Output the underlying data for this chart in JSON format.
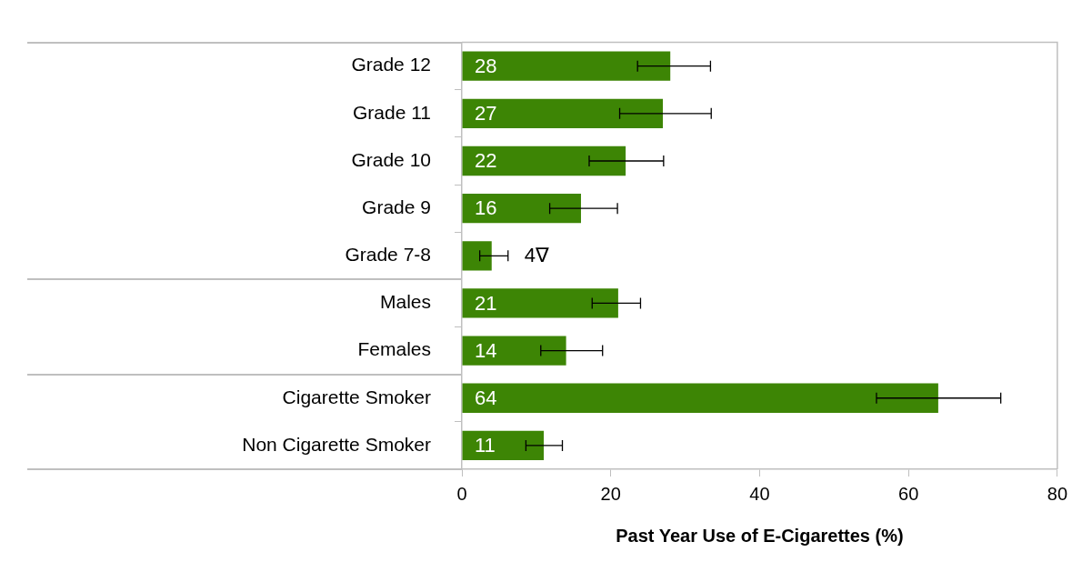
{
  "chart_data": {
    "type": "bar",
    "orientation": "horizontal",
    "xlabel": "Past Year Use of E-Cigarettes (%)",
    "categories": [
      "Grade 12",
      "Grade 11",
      "Grade 10",
      "Grade 9",
      "Grade 7-8",
      "Males",
      "Females",
      "Cigarette Smoker",
      "Non Cigarette Smoker"
    ],
    "values": [
      28,
      27,
      22,
      16,
      4,
      21,
      14,
      64,
      11
    ],
    "color": "#3d8505",
    "errors": [
      [
        23.6,
        33.4
      ],
      [
        21.2,
        33.5
      ],
      [
        17.1,
        27.1
      ],
      [
        11.8,
        20.9
      ],
      [
        2.4,
        6.2
      ],
      [
        17.5,
        24.0
      ],
      [
        10.6,
        18.9
      ],
      [
        55.7,
        72.4
      ],
      [
        8.6,
        13.5
      ]
    ],
    "value_labels": [
      "28",
      "27",
      "22",
      "16",
      "4∇",
      "21",
      "14",
      "64",
      "11"
    ],
    "xlim": [
      0,
      80
    ],
    "xticks": [
      0,
      20,
      40,
      60,
      80
    ],
    "grid": false,
    "legend": false
  }
}
